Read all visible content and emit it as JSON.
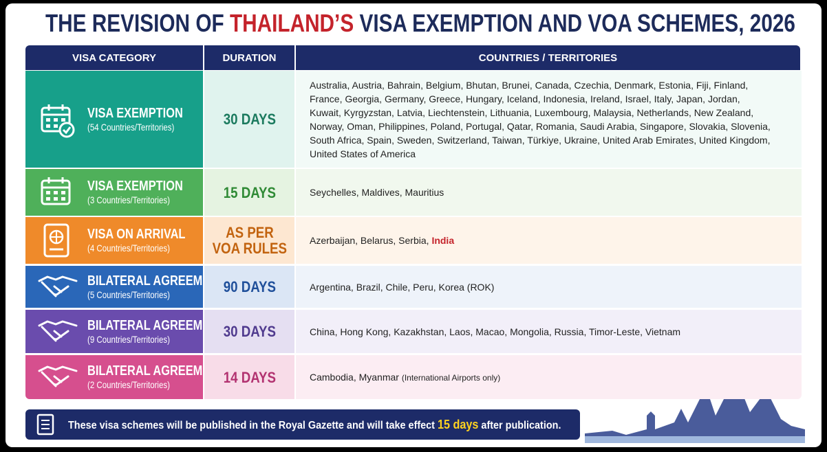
{
  "header": {
    "title_parts": [
      "THE REVISION OF ",
      "THAILAND’S",
      " VISA EXEMPTION AND VOA SCHEMES, 2026"
    ]
  },
  "table": {
    "columns": [
      "VISA CATEGORY",
      "DURATION",
      "COUNTRIES / TERRITORIES"
    ],
    "rows": [
      {
        "category": "VISA EXEMPTION",
        "count": "(54 Countries/Territories)",
        "duration": [
          "30 DAYS"
        ],
        "countries": [
          "Australia, Austria, Bahrain, Belgium, Bhutan, Brunei, Canada, Czechia, Denmark, Estonia, Fiji, Finland, France, Georgia, Germany, Greece, Hungary, Iceland, Indonesia, Ireland, Israel, Italy, Japan, Jordan, Kuwait, Kyrgyzstan, Latvia, Liechtenstein, Lithuania, Luxembourg, Malaysia, Netherlands, New Zealand, Norway, Oman, Philippines, Poland, Portugal, Qatar, Romania, Saudi Arabia, Singapore, Slovakia, Slovenia, South Africa, Spain, Sweden, Switzerland, Taiwan, Türkiye, Ukraine, United Arab Emirates, United Kingdom, United States of America"
        ]
      },
      {
        "category": "VISA EXEMPTION",
        "count": "(3 Countries/Territories)",
        "duration": [
          "15 DAYS"
        ],
        "countries": [
          "Seychelles, Maldives, Mauritius"
        ]
      },
      {
        "category": "VISA ON ARRIVAL",
        "count": "(4 Countries/Territories)",
        "duration": [
          "AS PER",
          "VOA RULES"
        ],
        "countries": [
          "Azerbaijan, Belarus, Serbia, ",
          "India"
        ]
      },
      {
        "category": "BILATERAL AGREEMENTS",
        "count": "(5 Countries/Territories)",
        "duration": [
          "90 DAYS"
        ],
        "countries": [
          "Argentina, Brazil, Chile, Peru, Korea (ROK)"
        ]
      },
      {
        "category": "BILATERAL AGREEMENTS",
        "count": "(9 Countries/Territories)",
        "duration": [
          "30 DAYS"
        ],
        "countries": [
          "China, Hong Kong, Kazakhstan, Laos, Macao, Mongolia, Russia, Timor-Leste, Vietnam"
        ]
      },
      {
        "category": "BILATERAL AGREEMENTS",
        "count": "(2 Countries/Territories)",
        "duration": [
          "14 DAYS"
        ],
        "countries": [
          "Cambodia, Myanmar ",
          "(International Airports only)"
        ]
      }
    ]
  },
  "footer": {
    "text_parts": [
      "These visa schemes will be published in the Royal Gazette and will take effect ",
      "15 days",
      " after publication."
    ]
  }
}
